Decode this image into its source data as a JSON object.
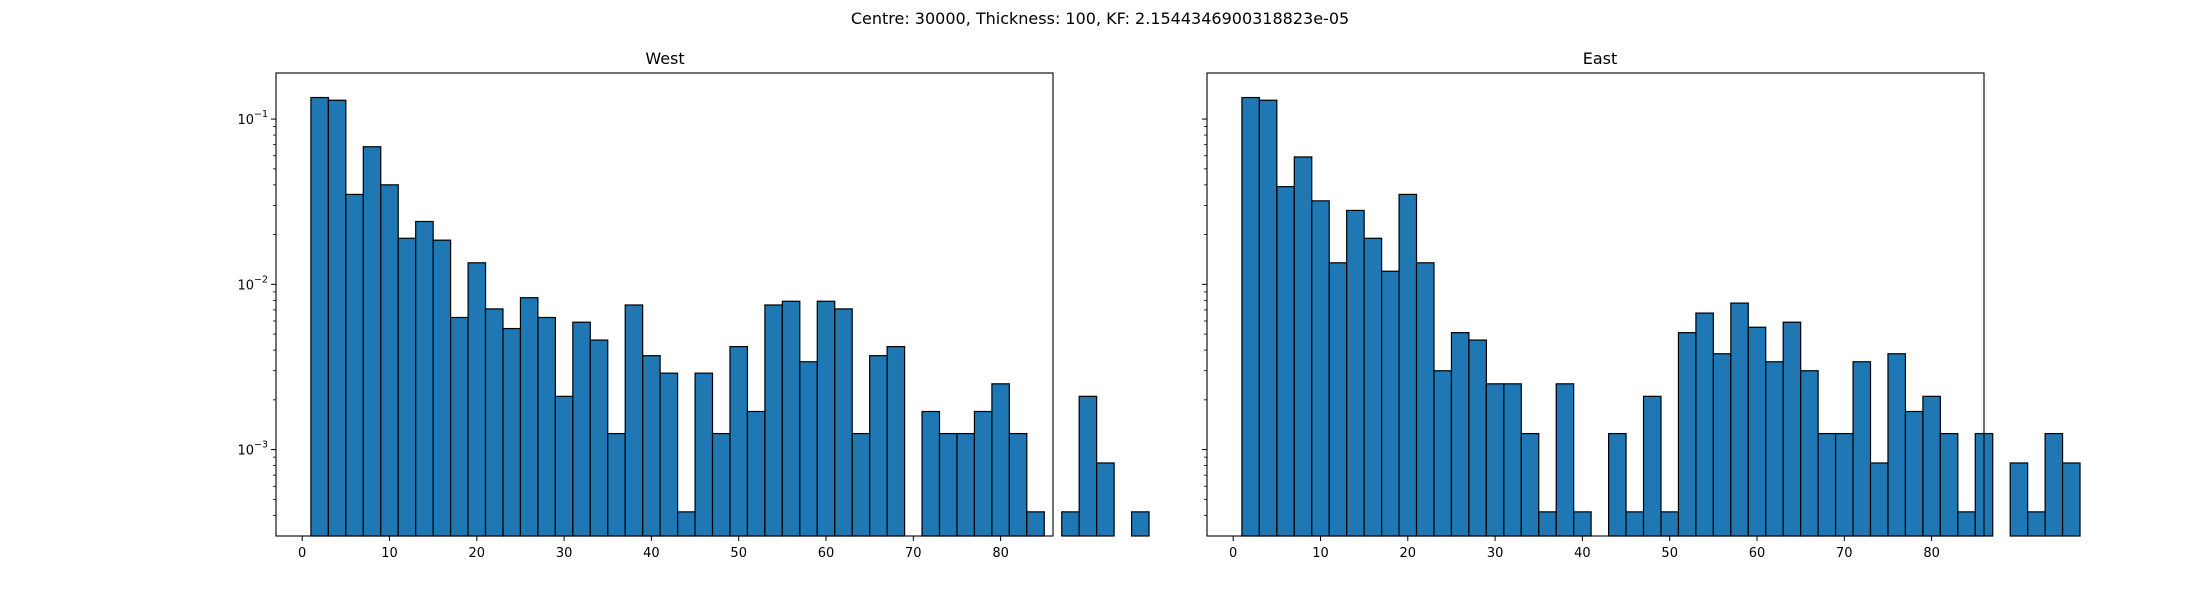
{
  "figure_title": "Centre: 30000, Thickness: 100, KF: 2.1544346900318823e-05",
  "colors": {
    "bar_fill": "#1f77b4",
    "bar_edge": "#000000",
    "axes": "#000000",
    "background": "#ffffff"
  },
  "chart_data": [
    {
      "type": "bar",
      "title": "West",
      "xlabel": "",
      "ylabel": "",
      "yscale": "log",
      "xlim": [
        -3,
        86
      ],
      "ylim": [
        0.0003,
        0.19
      ],
      "grid": false,
      "bin_width": 2,
      "xticks": [
        0,
        10,
        20,
        30,
        40,
        50,
        60,
        70,
        80
      ],
      "xtick_labels": [
        "0",
        "10",
        "20",
        "30",
        "40",
        "50",
        "60",
        "70",
        "80"
      ],
      "yticks": [
        0.001,
        0.01,
        0.1
      ],
      "ytick_labels": [
        {
          "base": "10",
          "exp": "−3"
        },
        {
          "base": "10",
          "exp": "−2"
        },
        {
          "base": "10",
          "exp": "−1"
        }
      ],
      "bins": [
        {
          "x0": 1,
          "value": 0.135
        },
        {
          "x0": 3,
          "value": 0.13
        },
        {
          "x0": 5,
          "value": 0.035
        },
        {
          "x0": 7,
          "value": 0.068
        },
        {
          "x0": 9,
          "value": 0.04
        },
        {
          "x0": 11,
          "value": 0.019
        },
        {
          "x0": 13,
          "value": 0.024
        },
        {
          "x0": 15,
          "value": 0.0185
        },
        {
          "x0": 17,
          "value": 0.0063
        },
        {
          "x0": 19,
          "value": 0.0135
        },
        {
          "x0": 21,
          "value": 0.0071
        },
        {
          "x0": 23,
          "value": 0.0054
        },
        {
          "x0": 25,
          "value": 0.0083
        },
        {
          "x0": 27,
          "value": 0.0063
        },
        {
          "x0": 29,
          "value": 0.0021
        },
        {
          "x0": 31,
          "value": 0.0059
        },
        {
          "x0": 33,
          "value": 0.0046
        },
        {
          "x0": 35,
          "value": 0.00125
        },
        {
          "x0": 37,
          "value": 0.0075
        },
        {
          "x0": 39,
          "value": 0.0037
        },
        {
          "x0": 41,
          "value": 0.0029
        },
        {
          "x0": 43,
          "value": 0.00042
        },
        {
          "x0": 45,
          "value": 0.0029
        },
        {
          "x0": 47,
          "value": 0.00125
        },
        {
          "x0": 49,
          "value": 0.0042
        },
        {
          "x0": 51,
          "value": 0.0017
        },
        {
          "x0": 53,
          "value": 0.0075
        },
        {
          "x0": 55,
          "value": 0.0079
        },
        {
          "x0": 57,
          "value": 0.0034
        },
        {
          "x0": 59,
          "value": 0.0079
        },
        {
          "x0": 61,
          "value": 0.0071
        },
        {
          "x0": 63,
          "value": 0.00125
        },
        {
          "x0": 65,
          "value": 0.0037
        },
        {
          "x0": 67,
          "value": 0.0042
        },
        {
          "x0": 71,
          "value": 0.0017
        },
        {
          "x0": 73,
          "value": 0.00125
        },
        {
          "x0": 75,
          "value": 0.00125
        },
        {
          "x0": 77,
          "value": 0.0017
        },
        {
          "x0": 79,
          "value": 0.0025
        },
        {
          "x0": 81,
          "value": 0.00125
        },
        {
          "x0": 83,
          "value": 0.00042
        },
        {
          "x0": 87,
          "value": 0.00042
        },
        {
          "x0": 89,
          "value": 0.0021
        },
        {
          "x0": 91,
          "value": 0.00083
        },
        {
          "x0": 95,
          "value": 0.00042
        }
      ]
    },
    {
      "type": "bar",
      "title": "East",
      "xlabel": "",
      "ylabel": "",
      "yscale": "log",
      "xlim": [
        -3,
        86
      ],
      "ylim": [
        0.0003,
        0.19
      ],
      "grid": false,
      "bin_width": 2,
      "xticks": [
        0,
        10,
        20,
        30,
        40,
        50,
        60,
        70,
        80
      ],
      "xtick_labels": [
        "0",
        "10",
        "20",
        "30",
        "40",
        "50",
        "60",
        "70",
        "80"
      ],
      "yticks": [
        0.001,
        0.01,
        0.1
      ],
      "ytick_labels": [],
      "bins": [
        {
          "x0": 1,
          "value": 0.135
        },
        {
          "x0": 3,
          "value": 0.13
        },
        {
          "x0": 5,
          "value": 0.039
        },
        {
          "x0": 7,
          "value": 0.059
        },
        {
          "x0": 9,
          "value": 0.032
        },
        {
          "x0": 11,
          "value": 0.0135
        },
        {
          "x0": 13,
          "value": 0.028
        },
        {
          "x0": 15,
          "value": 0.019
        },
        {
          "x0": 17,
          "value": 0.012
        },
        {
          "x0": 19,
          "value": 0.035
        },
        {
          "x0": 21,
          "value": 0.0135
        },
        {
          "x0": 23,
          "value": 0.003
        },
        {
          "x0": 25,
          "value": 0.0051
        },
        {
          "x0": 27,
          "value": 0.0046
        },
        {
          "x0": 29,
          "value": 0.0025
        },
        {
          "x0": 31,
          "value": 0.0025
        },
        {
          "x0": 33,
          "value": 0.00125
        },
        {
          "x0": 35,
          "value": 0.00042
        },
        {
          "x0": 37,
          "value": 0.0025
        },
        {
          "x0": 39,
          "value": 0.00042
        },
        {
          "x0": 43,
          "value": 0.00125
        },
        {
          "x0": 45,
          "value": 0.00042
        },
        {
          "x0": 47,
          "value": 0.0021
        },
        {
          "x0": 49,
          "value": 0.00042
        },
        {
          "x0": 51,
          "value": 0.0051
        },
        {
          "x0": 53,
          "value": 0.0067
        },
        {
          "x0": 55,
          "value": 0.0038
        },
        {
          "x0": 57,
          "value": 0.0077
        },
        {
          "x0": 59,
          "value": 0.0055
        },
        {
          "x0": 61,
          "value": 0.0034
        },
        {
          "x0": 63,
          "value": 0.0059
        },
        {
          "x0": 65,
          "value": 0.003
        },
        {
          "x0": 67,
          "value": 0.00125
        },
        {
          "x0": 69,
          "value": 0.00125
        },
        {
          "x0": 71,
          "value": 0.0034
        },
        {
          "x0": 73,
          "value": 0.00083
        },
        {
          "x0": 75,
          "value": 0.0038
        },
        {
          "x0": 77,
          "value": 0.0017
        },
        {
          "x0": 79,
          "value": 0.0021
        },
        {
          "x0": 81,
          "value": 0.00125
        },
        {
          "x0": 83,
          "value": 0.00042
        },
        {
          "x0": 85,
          "value": 0.00125
        },
        {
          "x0": 89,
          "value": 0.00083
        },
        {
          "x0": 91,
          "value": 0.00042
        },
        {
          "x0": 93,
          "value": 0.00125
        },
        {
          "x0": 95,
          "value": 0.00083
        }
      ]
    }
  ]
}
